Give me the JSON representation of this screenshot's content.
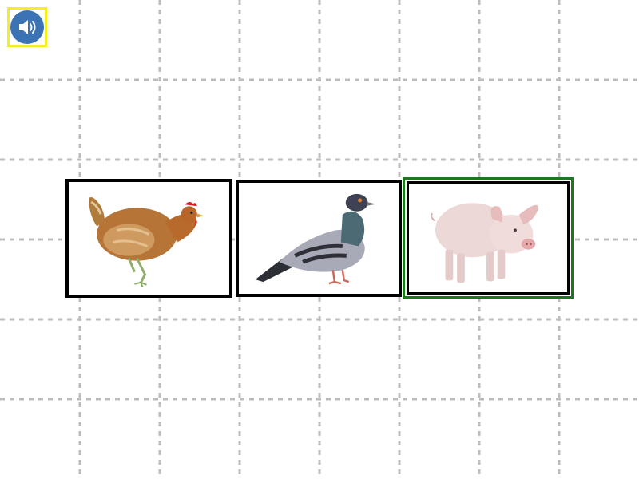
{
  "toolbar": {
    "audio_icon": "speaker-icon",
    "highlight_color": "#f4ee25",
    "button_color": "#3b73b5"
  },
  "cards": [
    {
      "animal": "hen",
      "selected": false,
      "border_color": "#000000"
    },
    {
      "animal": "pigeon",
      "selected": false,
      "border_color": "#000000"
    },
    {
      "animal": "pig",
      "selected": true,
      "border_color": "#1a7a1a"
    }
  ],
  "grid": {
    "line_color": "#bdbdbd",
    "style": "dashed"
  }
}
